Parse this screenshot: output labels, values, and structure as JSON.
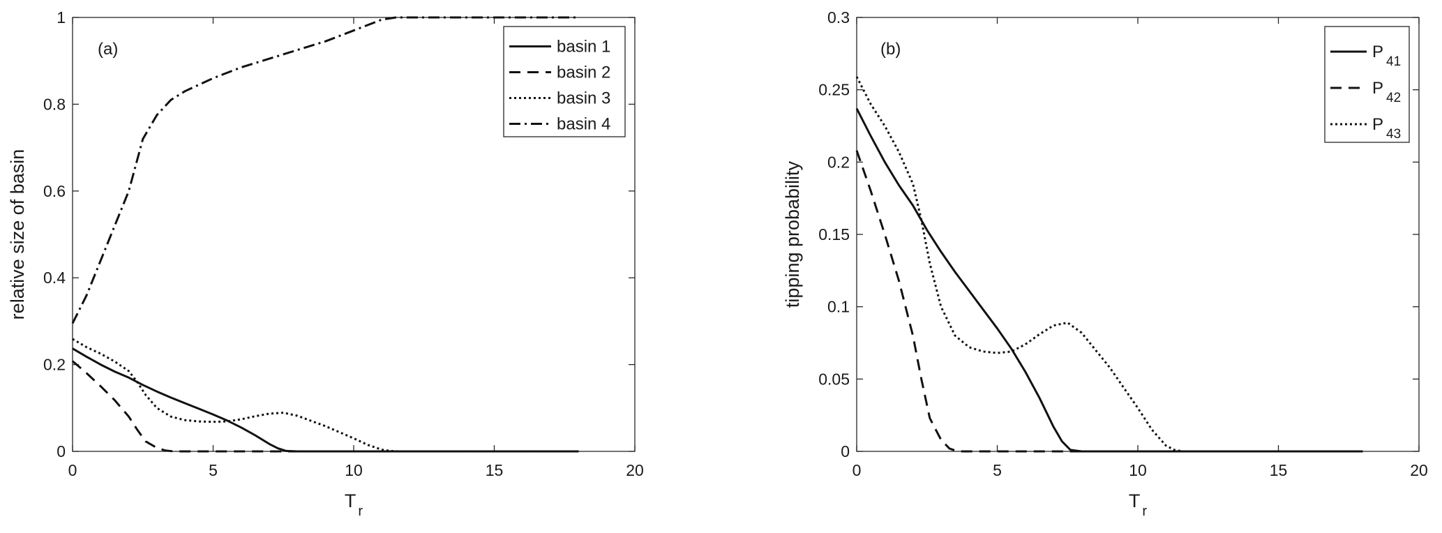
{
  "chart_data": [
    {
      "type": "line",
      "panel_label": "(a)",
      "xlabel": "T",
      "xlabel_sub": "r",
      "ylabel": "relative size of basin",
      "xlim": [
        0,
        20
      ],
      "ylim": [
        0,
        1
      ],
      "xticks": [
        0,
        5,
        10,
        15,
        20
      ],
      "yticks": [
        0,
        0.2,
        0.4,
        0.6,
        0.8,
        1
      ],
      "ytick_labels": [
        "0",
        "0.2",
        "0.4",
        "0.6",
        "0.8",
        "1"
      ],
      "grid": false,
      "legend_position": "top-right",
      "series": [
        {
          "name": "basin 1",
          "dash": "solid",
          "x": [
            0,
            0.5,
            1,
            1.5,
            2,
            2.5,
            3,
            3.5,
            4,
            4.5,
            5,
            5.5,
            6,
            6.5,
            7,
            7.3,
            7.6,
            8,
            9,
            10,
            12,
            14,
            16,
            18
          ],
          "y": [
            0.237,
            0.218,
            0.2,
            0.184,
            0.17,
            0.153,
            0.138,
            0.124,
            0.111,
            0.098,
            0.085,
            0.071,
            0.055,
            0.037,
            0.017,
            0.007,
            0.001,
            0,
            0,
            0,
            0,
            0,
            0,
            0
          ]
        },
        {
          "name": "basin 2",
          "dash": "dashed",
          "x": [
            0,
            0.5,
            1,
            1.5,
            2,
            2.3,
            2.6,
            3,
            3.3,
            3.6,
            4,
            5,
            6,
            8,
            10,
            12,
            14,
            16,
            18
          ],
          "y": [
            0.208,
            0.18,
            0.15,
            0.118,
            0.08,
            0.05,
            0.023,
            0.008,
            0.002,
            0,
            0,
            0,
            0,
            0,
            0,
            0,
            0,
            0,
            0
          ]
        },
        {
          "name": "basin 3",
          "dash": "dotted",
          "x": [
            0,
            0.5,
            1,
            1.5,
            2,
            2.3,
            2.6,
            3,
            3.5,
            4,
            4.5,
            5,
            5.5,
            6,
            6.5,
            7,
            7.5,
            8,
            8.5,
            9,
            9.5,
            10,
            10.5,
            11,
            11.3,
            11.6,
            12,
            14,
            16,
            18
          ],
          "y": [
            0.259,
            0.24,
            0.225,
            0.207,
            0.185,
            0.16,
            0.13,
            0.1,
            0.08,
            0.072,
            0.069,
            0.068,
            0.069,
            0.074,
            0.081,
            0.087,
            0.089,
            0.082,
            0.07,
            0.058,
            0.044,
            0.03,
            0.015,
            0.004,
            0.001,
            0,
            0,
            0,
            0,
            0
          ]
        },
        {
          "name": "basin 4",
          "dash": "dashdot",
          "x": [
            0,
            0.5,
            1,
            1.5,
            2,
            2.5,
            3,
            3.5,
            4,
            5,
            6,
            7,
            8,
            9,
            10,
            11,
            11.5,
            12,
            14,
            16,
            18
          ],
          "y": [
            0.295,
            0.36,
            0.44,
            0.52,
            0.6,
            0.72,
            0.775,
            0.81,
            0.83,
            0.86,
            0.885,
            0.905,
            0.925,
            0.945,
            0.97,
            0.995,
            1.0,
            1.0,
            1.0,
            1.0,
            1.0
          ]
        }
      ]
    },
    {
      "type": "line",
      "panel_label": "(b)",
      "xlabel": "T",
      "xlabel_sub": "r",
      "ylabel": "tipping probability",
      "xlim": [
        0,
        20
      ],
      "ylim": [
        0,
        0.3
      ],
      "xticks": [
        0,
        5,
        10,
        15,
        20
      ],
      "yticks": [
        0,
        0.05,
        0.1,
        0.15,
        0.2,
        0.25,
        0.3
      ],
      "ytick_labels": [
        "0",
        "0.05",
        "0.1",
        "0.15",
        "0.2",
        "0.25",
        "0.3"
      ],
      "grid": false,
      "legend_position": "top-right",
      "series": [
        {
          "name": "P",
          "name_sub": "41",
          "dash": "solid",
          "x": [
            0,
            0.5,
            1,
            1.5,
            2,
            2.5,
            3,
            3.5,
            4,
            4.5,
            5,
            5.5,
            6,
            6.5,
            7,
            7.3,
            7.6,
            8,
            10,
            12,
            14,
            16,
            18
          ],
          "y": [
            0.237,
            0.218,
            0.2,
            0.184,
            0.17,
            0.153,
            0.138,
            0.124,
            0.111,
            0.098,
            0.085,
            0.071,
            0.055,
            0.037,
            0.017,
            0.007,
            0.001,
            0,
            0,
            0,
            0,
            0,
            0
          ]
        },
        {
          "name": "P",
          "name_sub": "42",
          "dash": "dashed",
          "x": [
            0,
            0.5,
            1,
            1.5,
            2,
            2.3,
            2.6,
            3,
            3.3,
            3.6,
            4,
            5,
            6,
            8,
            10,
            12,
            14,
            16,
            18
          ],
          "y": [
            0.208,
            0.18,
            0.15,
            0.118,
            0.08,
            0.05,
            0.023,
            0.008,
            0.002,
            0,
            0,
            0,
            0,
            0,
            0,
            0,
            0,
            0,
            0
          ]
        },
        {
          "name": "P",
          "name_sub": "43",
          "dash": "dotted",
          "x": [
            0,
            0.5,
            1,
            1.5,
            2,
            2.3,
            2.6,
            3,
            3.5,
            4,
            4.5,
            5,
            5.5,
            6,
            6.5,
            7,
            7.5,
            8,
            8.5,
            9,
            9.5,
            10,
            10.5,
            11,
            11.3,
            11.6,
            12,
            14,
            16,
            18
          ],
          "y": [
            0.259,
            0.24,
            0.225,
            0.207,
            0.185,
            0.16,
            0.13,
            0.1,
            0.08,
            0.072,
            0.069,
            0.068,
            0.069,
            0.074,
            0.081,
            0.087,
            0.089,
            0.082,
            0.07,
            0.058,
            0.044,
            0.03,
            0.015,
            0.004,
            0.001,
            0,
            0,
            0,
            0,
            0
          ]
        }
      ]
    }
  ]
}
